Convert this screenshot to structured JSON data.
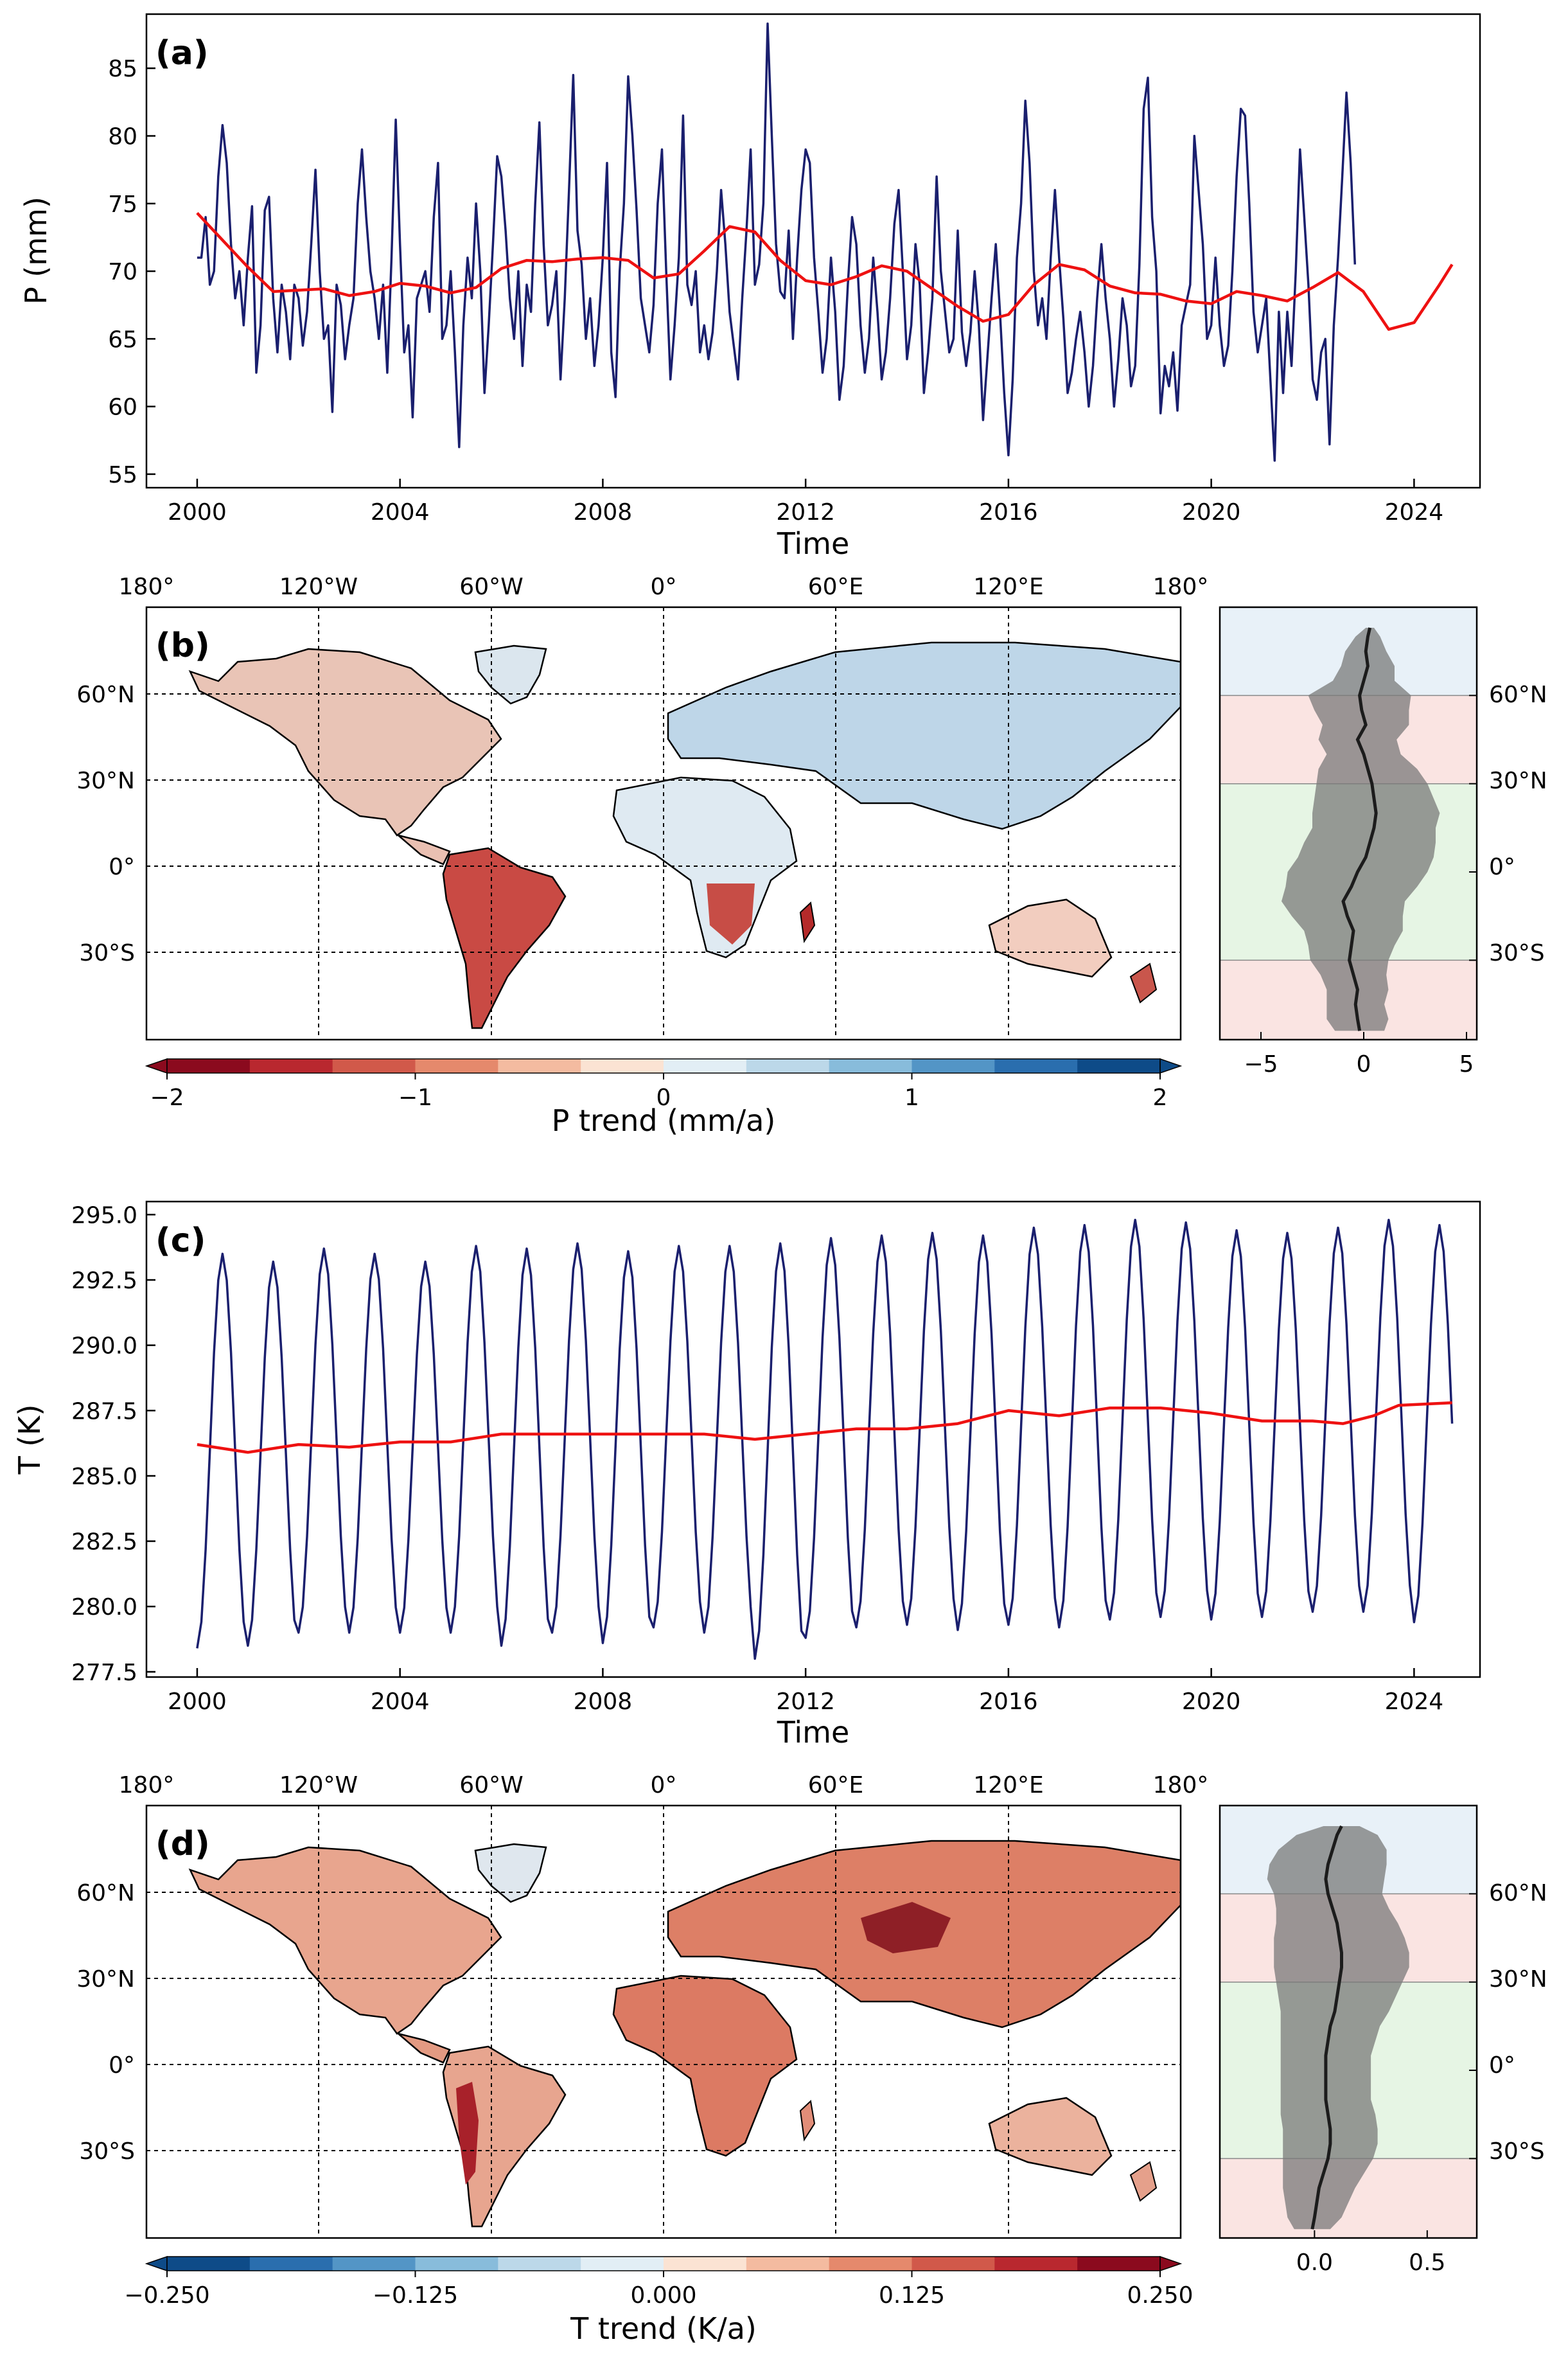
{
  "colors": {
    "monthly_line": "#1a1f6e",
    "trend_line": "#ee1111",
    "profile_line": "#1c1c1c",
    "profile_band": "#7a7a7a",
    "band_polar": "#dce9f5",
    "band_mid": "#f8d6d2",
    "band_tropic": "#d8efd6",
    "land_outline": "#000000"
  },
  "panels": {
    "a": "(a)",
    "b": "(b)",
    "c": "(c)",
    "d": "(d)"
  },
  "axis_labels": {
    "time_a": "Time",
    "time_c": "Time",
    "p_y": "P (mm)",
    "t_y": "T (K)",
    "p_cbar": "P trend (mm/a)",
    "t_cbar": "T trend (K/a)"
  },
  "map_ticks": {
    "lon": [
      "180°",
      "120°W",
      "60°W",
      "0°",
      "60°E",
      "120°E",
      "180°"
    ],
    "lat": [
      "60°N",
      "30°N",
      "0°",
      "30°S"
    ]
  },
  "chart_data": [
    {
      "id": "a",
      "type": "line",
      "title": "",
      "xlabel": "Time",
      "ylabel": "P (mm)",
      "xlim": [
        1999.0,
        2025.3
      ],
      "ylim": [
        54,
        89
      ],
      "xticks": [
        2000,
        2004,
        2008,
        2012,
        2016,
        2020,
        2024
      ],
      "yticks": [
        55,
        60,
        65,
        70,
        75,
        80,
        85
      ],
      "series": [
        {
          "name": "Monthly precipitation",
          "kind": "monthly",
          "start": 2000.0,
          "step": 0.0833333,
          "values": [
            71.0,
            71.0,
            74.0,
            69.0,
            70.0,
            77.0,
            80.8,
            78.0,
            72.0,
            68.0,
            70.0,
            66.0,
            71.0,
            74.8,
            62.5,
            66.0,
            74.5,
            75.5,
            68.0,
            64.0,
            69.0,
            67.0,
            63.5,
            69.0,
            68.0,
            64.5,
            67.0,
            72.0,
            77.5,
            70.0,
            65.0,
            66.0,
            59.6,
            69.0,
            67.5,
            63.5,
            66.0,
            68.0,
            75.0,
            79.0,
            74.0,
            70.0,
            68.0,
            65.0,
            69.0,
            62.5,
            71.0,
            81.2,
            72.0,
            64.0,
            66.0,
            59.2,
            68.0,
            69.0,
            70.0,
            67.0,
            74.0,
            78.0,
            65.0,
            66.0,
            70.0,
            64.0,
            57.0,
            66.0,
            71.0,
            68.0,
            75.0,
            70.0,
            61.0,
            66.0,
            72.0,
            78.5,
            77.0,
            73.0,
            68.0,
            65.0,
            70.0,
            63.0,
            69.0,
            67.0,
            75.0,
            81.0,
            72.0,
            66.0,
            67.5,
            70.0,
            62.0,
            68.0,
            76.0,
            84.5,
            73.0,
            70.5,
            65.0,
            68.0,
            63.0,
            66.0,
            71.0,
            78.0,
            64.0,
            60.7,
            70.0,
            75.0,
            84.4,
            80.0,
            74.5,
            68.0,
            66.0,
            64.0,
            67.5,
            75.0,
            79.0,
            70.0,
            62.0,
            66.0,
            71.0,
            81.5,
            69.0,
            67.5,
            70.0,
            64.0,
            66.0,
            63.5,
            65.5,
            70.0,
            76.0,
            72.0,
            67.0,
            64.5,
            62.0,
            68.0,
            73.0,
            79.0,
            69.0,
            70.5,
            75.0,
            88.3,
            80.0,
            72.0,
            68.5,
            68.0,
            73.0,
            65.0,
            71.0,
            76.0,
            79.0,
            78.0,
            71.0,
            67.0,
            62.5,
            65.0,
            71.0,
            67.0,
            60.5,
            63.0,
            69.0,
            74.0,
            72.0,
            66.0,
            62.5,
            65.0,
            71.0,
            67.0,
            62.0,
            64.0,
            68.0,
            73.5,
            76.0,
            70.0,
            63.5,
            66.0,
            72.0,
            69.0,
            61.0,
            64.0,
            68.0,
            77.0,
            70.0,
            67.0,
            64.0,
            65.0,
            73.0,
            65.5,
            63.0,
            65.5,
            70.0,
            66.0,
            59.0,
            63.5,
            68.0,
            72.0,
            67.0,
            61.0,
            56.4,
            62.0,
            71.0,
            75.0,
            82.6,
            78.0,
            70.0,
            66.0,
            68.0,
            65.0,
            71.0,
            76.0,
            71.0,
            66.5,
            61.0,
            62.5,
            65.0,
            67.0,
            64.0,
            60.0,
            63.0,
            68.0,
            72.0,
            68.0,
            65.0,
            60.0,
            63.5,
            68.0,
            66.0,
            61.5,
            63.0,
            70.5,
            82.0,
            84.3,
            74.0,
            70.0,
            59.5,
            63.0,
            61.5,
            64.0,
            59.7,
            66.0,
            67.5,
            69.0,
            80.0,
            76.0,
            72.0,
            65.0,
            66.0,
            71.0,
            66.0,
            63.0,
            64.5,
            70.0,
            77.0,
            82.0,
            81.5,
            75.0,
            67.0,
            64.0,
            66.0,
            68.0,
            62.0,
            56.0,
            67.0,
            61.0,
            67.0,
            63.0,
            70.0,
            79.0,
            74.0,
            69.0,
            62.0,
            60.5,
            64.0,
            65.0,
            57.2,
            66.0,
            71.0,
            77.0,
            83.2,
            78.0,
            70.5
          ]
        },
        {
          "name": "12-month moving average",
          "kind": "smooth",
          "points": [
            [
              2000.0,
              74.3
            ],
            [
              2000.5,
              72.3
            ],
            [
              2001.0,
              70.3
            ],
            [
              2001.5,
              68.5
            ],
            [
              2002.0,
              68.6
            ],
            [
              2002.5,
              68.7
            ],
            [
              2003.0,
              68.2
            ],
            [
              2003.5,
              68.5
            ],
            [
              2004.0,
              69.1
            ],
            [
              2004.5,
              68.9
            ],
            [
              2005.0,
              68.4
            ],
            [
              2005.5,
              68.8
            ],
            [
              2006.0,
              70.2
            ],
            [
              2006.5,
              70.8
            ],
            [
              2007.0,
              70.7
            ],
            [
              2007.5,
              70.9
            ],
            [
              2008.0,
              71.0
            ],
            [
              2008.5,
              70.8
            ],
            [
              2009.0,
              69.5
            ],
            [
              2009.5,
              69.8
            ],
            [
              2010.0,
              71.5
            ],
            [
              2010.5,
              73.3
            ],
            [
              2011.0,
              72.9
            ],
            [
              2011.5,
              70.8
            ],
            [
              2012.0,
              69.3
            ],
            [
              2012.5,
              69.0
            ],
            [
              2013.0,
              69.6
            ],
            [
              2013.5,
              70.4
            ],
            [
              2014.0,
              70.0
            ],
            [
              2014.5,
              68.7
            ],
            [
              2015.0,
              67.4
            ],
            [
              2015.5,
              66.3
            ],
            [
              2016.0,
              66.8
            ],
            [
              2016.5,
              69.0
            ],
            [
              2017.0,
              70.5
            ],
            [
              2017.5,
              70.1
            ],
            [
              2018.0,
              68.9
            ],
            [
              2018.5,
              68.4
            ],
            [
              2019.0,
              68.3
            ],
            [
              2019.5,
              67.8
            ],
            [
              2020.0,
              67.6
            ],
            [
              2020.5,
              68.5
            ],
            [
              2021.0,
              68.2
            ],
            [
              2021.5,
              67.8
            ],
            [
              2022.0,
              68.8
            ],
            [
              2022.5,
              69.9
            ],
            [
              2023.0,
              68.5
            ],
            [
              2023.5,
              65.7
            ],
            [
              2024.0,
              66.2
            ],
            [
              2024.5,
              69.0
            ],
            [
              2024.75,
              70.5
            ]
          ]
        }
      ]
    },
    {
      "id": "c",
      "type": "line",
      "title": "",
      "xlabel": "Time",
      "ylabel": "T (K)",
      "xlim": [
        1999.0,
        2025.3
      ],
      "ylim": [
        277.3,
        295.5
      ],
      "xticks": [
        2000,
        2004,
        2008,
        2012,
        2016,
        2020,
        2024
      ],
      "yticks": [
        277.5,
        280.0,
        282.5,
        285.0,
        287.5,
        290.0,
        292.5,
        295.0
      ],
      "series": [
        {
          "name": "Monthly temperature",
          "kind": "seasonal",
          "start": 2000.0,
          "end": 2024.75,
          "peaks": [
            293.5,
            293.2,
            293.7,
            293.5,
            293.2,
            293.8,
            293.7,
            293.9,
            293.6,
            293.8,
            293.8,
            293.9,
            294.1,
            294.2,
            294.3,
            294.2,
            294.5,
            294.6,
            294.8,
            294.7,
            294.4,
            294.3,
            294.5,
            294.8,
            294.6
          ],
          "troughs": [
            278.4,
            278.5,
            279.0,
            279.0,
            279.0,
            279.0,
            278.5,
            279.0,
            278.6,
            279.2,
            279.0,
            278.0,
            278.8,
            279.2,
            279.3,
            279.1,
            279.3,
            279.2,
            279.5,
            279.6,
            279.5,
            279.6,
            279.8,
            279.8,
            279.4
          ]
        },
        {
          "name": "12-month moving average",
          "kind": "smooth",
          "points": [
            [
              2000.0,
              286.2
            ],
            [
              2001.0,
              285.9
            ],
            [
              2002.0,
              286.2
            ],
            [
              2003.0,
              286.1
            ],
            [
              2004.0,
              286.3
            ],
            [
              2005.0,
              286.3
            ],
            [
              2006.0,
              286.6
            ],
            [
              2007.0,
              286.6
            ],
            [
              2008.0,
              286.6
            ],
            [
              2009.0,
              286.6
            ],
            [
              2010.0,
              286.6
            ],
            [
              2011.0,
              286.4
            ],
            [
              2012.0,
              286.6
            ],
            [
              2013.0,
              286.8
            ],
            [
              2014.0,
              286.8
            ],
            [
              2015.0,
              287.0
            ],
            [
              2016.0,
              287.5
            ],
            [
              2017.0,
              287.3
            ],
            [
              2018.0,
              287.6
            ],
            [
              2019.0,
              287.6
            ],
            [
              2020.0,
              287.4
            ],
            [
              2021.0,
              287.1
            ],
            [
              2022.0,
              287.1
            ],
            [
              2022.6,
              287.0
            ],
            [
              2023.2,
              287.3
            ],
            [
              2023.7,
              287.7
            ],
            [
              2024.75,
              287.8
            ]
          ]
        }
      ]
    },
    {
      "id": "b_colorbar",
      "type": "heatmap",
      "label": "P trend (mm/a)",
      "range": [
        -2,
        2
      ],
      "ticks": [
        -2,
        -1,
        0,
        1,
        2
      ],
      "tick_labels": [
        "−2",
        "−1",
        "0",
        "1",
        "2"
      ],
      "colors": [
        "#8b0a1e",
        "#b9282f",
        "#d1594a",
        "#e5896c",
        "#f4bba0",
        "#fbe3d3",
        "#e2eef5",
        "#bcd8e9",
        "#88bcdb",
        "#5395c6",
        "#2a6eae",
        "#0e4b88"
      ]
    },
    {
      "id": "d_colorbar",
      "type": "heatmap",
      "label": "T trend (K/a)",
      "range": [
        -0.25,
        0.25
      ],
      "ticks": [
        -0.25,
        -0.125,
        0,
        0.125,
        0.25
      ],
      "tick_labels": [
        "−0.250",
        "−0.125",
        "0.000",
        "0.125",
        "0.250"
      ],
      "colors": [
        "#0e4b88",
        "#2a6eae",
        "#5395c6",
        "#88bcdb",
        "#bcd8e9",
        "#e2eef5",
        "#fbe3d3",
        "#f4bba0",
        "#e5896c",
        "#d1594a",
        "#b9282f",
        "#8b0a1e"
      ]
    },
    {
      "id": "b_profile",
      "type": "line",
      "xlabel": "",
      "xlim": [
        -7,
        5.5
      ],
      "xticks": [
        -5,
        0,
        5
      ],
      "tick_labels": [
        "−5",
        "0",
        "5"
      ],
      "ylim": [
        -57,
        90
      ],
      "lat_ticks": [
        60,
        30,
        0,
        -30
      ],
      "lat": [
        83,
        80,
        75,
        70,
        65,
        60,
        55,
        50,
        45,
        40,
        35,
        30,
        25,
        20,
        15,
        10,
        5,
        0,
        -5,
        -10,
        -15,
        -20,
        -25,
        -30,
        -35,
        -40,
        -45,
        -50,
        -54
      ],
      "mean": [
        0.3,
        0.2,
        0.1,
        0.2,
        0.0,
        -0.2,
        -0.1,
        0.1,
        -0.3,
        0.0,
        0.2,
        0.4,
        0.5,
        0.6,
        0.5,
        0.3,
        0.1,
        -0.3,
        -0.6,
        -1.0,
        -0.8,
        -0.5,
        -0.6,
        -0.7,
        -0.5,
        -0.3,
        -0.4,
        -0.3,
        -0.2
      ],
      "spread": [
        0.2,
        0.6,
        1.0,
        1.3,
        1.5,
        2.5,
        2.3,
        2.1,
        1.9,
        1.8,
        2.4,
        2.7,
        2.9,
        3.1,
        3.0,
        3.2,
        3.3,
        3.4,
        3.2,
        3.0,
        2.7,
        2.4,
        2.1,
        1.9,
        1.6,
        1.5,
        1.4,
        1.5,
        1.2
      ]
    },
    {
      "id": "d_profile",
      "type": "line",
      "xlabel": "",
      "xlim": [
        -0.42,
        0.72
      ],
      "xticks": [
        0.0,
        0.5
      ],
      "tick_labels": [
        "0.0",
        "0.5"
      ],
      "ylim": [
        -57,
        90
      ],
      "lat_ticks": [
        60,
        30,
        0,
        -30
      ],
      "lat": [
        83,
        80,
        75,
        70,
        65,
        60,
        55,
        50,
        45,
        40,
        35,
        30,
        25,
        20,
        15,
        10,
        5,
        0,
        -5,
        -10,
        -15,
        -20,
        -25,
        -30,
        -35,
        -40,
        -45,
        -50,
        -54
      ],
      "mean": [
        0.12,
        0.1,
        0.08,
        0.06,
        0.05,
        0.06,
        0.08,
        0.1,
        0.11,
        0.12,
        0.12,
        0.11,
        0.1,
        0.09,
        0.07,
        0.06,
        0.05,
        0.05,
        0.05,
        0.05,
        0.06,
        0.07,
        0.07,
        0.06,
        0.04,
        0.02,
        0.01,
        0.0,
        -0.01
      ],
      "spread": [
        0.08,
        0.18,
        0.24,
        0.26,
        0.26,
        0.24,
        0.25,
        0.27,
        0.29,
        0.3,
        0.3,
        0.28,
        0.26,
        0.24,
        0.22,
        0.21,
        0.2,
        0.2,
        0.2,
        0.2,
        0.21,
        0.21,
        0.21,
        0.2,
        0.18,
        0.16,
        0.14,
        0.12,
        0.08
      ]
    }
  ]
}
